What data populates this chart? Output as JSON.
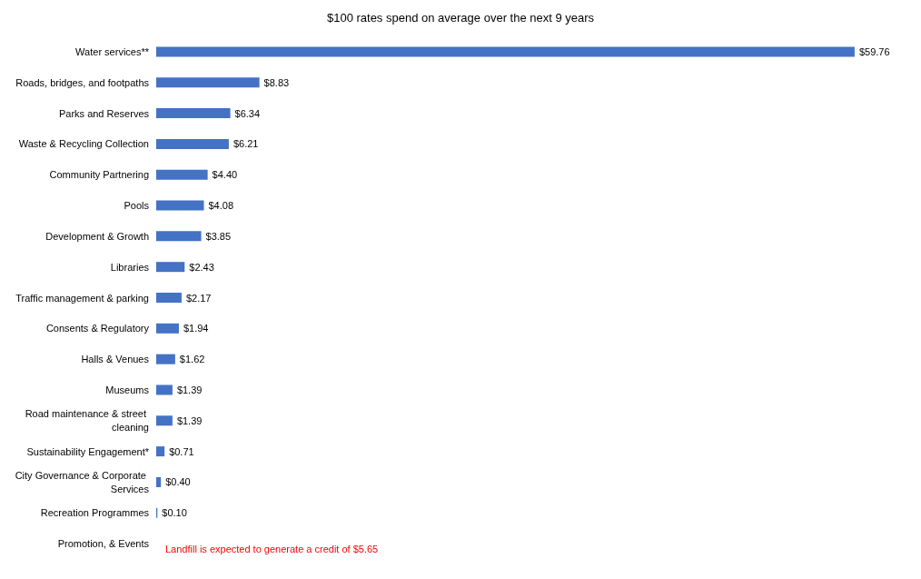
{
  "chart_data": {
    "type": "bar",
    "orientation": "horizontal",
    "title": "$100 rates spend on average over the next 9 years",
    "categories": [
      "Water services**",
      "Roads, bridges, and footpaths",
      "Parks and Reserves",
      "Waste & Recycling Collection",
      "Community Partnering",
      "Pools",
      "Development & Growth",
      "Libraries",
      "Traffic management & parking",
      "Consents & Regulatory",
      "Halls & Venues",
      "Museums",
      "Road maintenance & street cleaning",
      "Sustainability Engagement*",
      "City Governance & Corporate Services",
      "Recreation Programmes",
      "Promotion, & Events"
    ],
    "values": [
      59.76,
      8.83,
      6.34,
      6.21,
      4.4,
      4.08,
      3.85,
      2.43,
      2.17,
      1.94,
      1.62,
      1.39,
      1.39,
      0.71,
      0.4,
      0.1,
      null
    ],
    "value_labels": [
      "$59.76",
      "$8.83",
      "$6.34",
      "$6.21",
      "$4.40",
      "$4.08",
      "$3.85",
      "$2.43",
      "$2.17",
      "$1.94",
      "$1.62",
      "$1.39",
      "$1.39",
      "$0.71",
      "$0.40",
      "$0.10",
      null
    ],
    "color": "#4472c4",
    "annotations": [
      "Landfill is expected to generate a credit of $5.65"
    ]
  }
}
